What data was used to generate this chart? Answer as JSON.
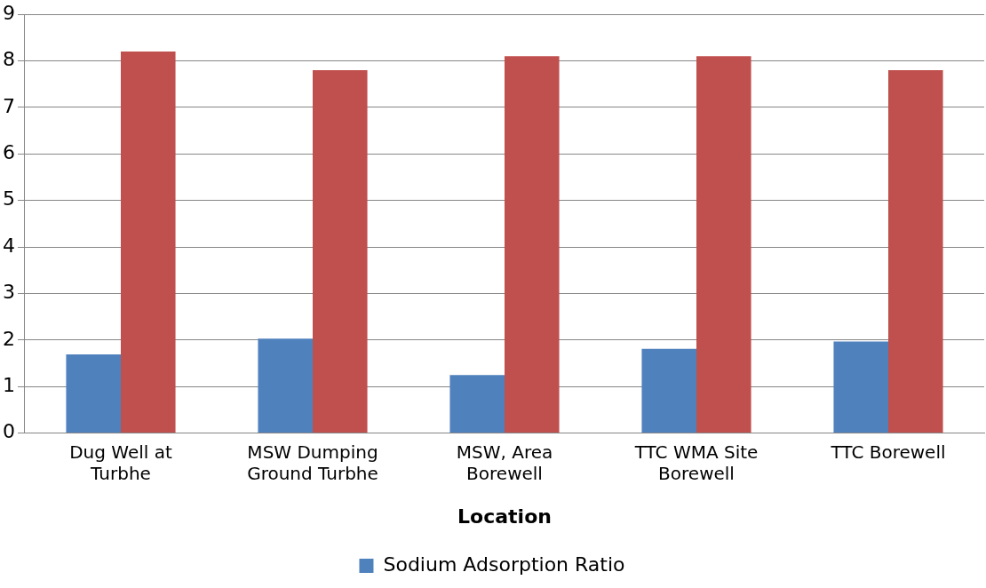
{
  "chart_data": {
    "type": "bar",
    "xlabel": "Location",
    "categories": [
      "Dug Well at Turbhe",
      "MSW Dumping Ground Turbhe",
      "MSW, Area Borewell",
      "TTC WMA Site Borewell",
      "TTC Borewell"
    ],
    "series": [
      {
        "name": "Sodium Adsorption Ratio",
        "color": "#4f81bd",
        "values": [
          1.69,
          2.03,
          1.25,
          1.81,
          1.97
        ]
      },
      {
        "color": "#c0504d",
        "values": [
          8.2,
          7.8,
          8.1,
          8.1,
          7.8
        ]
      }
    ],
    "ylim": [
      0,
      9
    ],
    "yticks": [
      0,
      1,
      2,
      3,
      4,
      5,
      6,
      7,
      8,
      9
    ],
    "grid": "y",
    "legend": "bottom"
  }
}
